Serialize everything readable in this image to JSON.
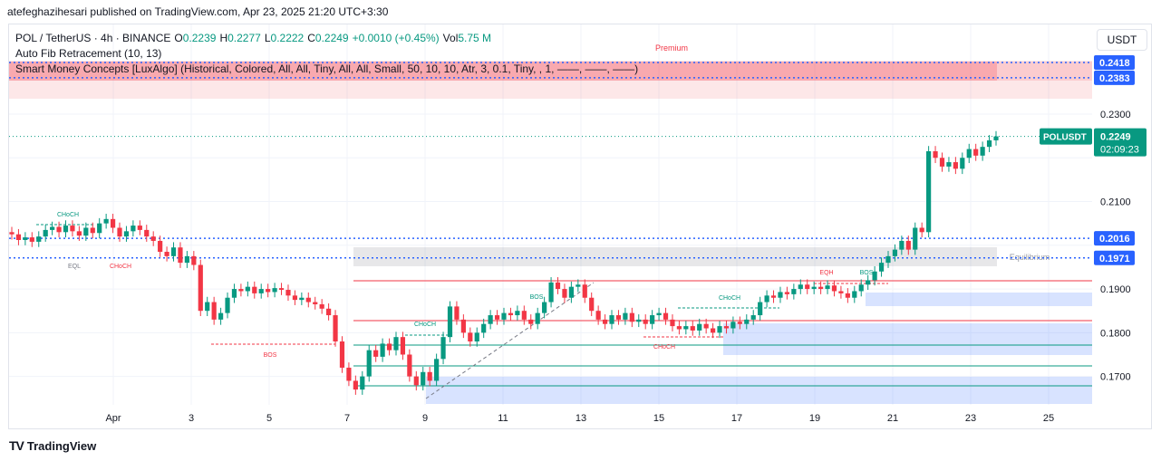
{
  "header": {
    "published_line": "atefeghazihesari published on TradingView.com, Apr 23, 2025 21:20 UTC+3:30"
  },
  "legend": {
    "symbol": "POL / TetherUS · 4h · BINANCE",
    "o_label": "O",
    "o_value": "0.2239",
    "h_label": "H",
    "h_value": "0.2277",
    "l_label": "L",
    "l_value": "0.2222",
    "c_label": "C",
    "c_value": "0.2249",
    "change": "+0.0010 (+0.45%)",
    "vol_label": "Vol",
    "vol_value": "5.75 M",
    "indicator1": "Auto Fib Retracement (10, 13)",
    "indicator2": "Smart Money Concepts [LuxAlgo] (Historical, Colored, All, All, Tiny, All, All, Small, 50, 10, 10, Atr, 3, 0.1, Tiny, , 1, ——, ——, ——)"
  },
  "currency_button": "USDT",
  "brand": {
    "name": "TradingView"
  },
  "colors": {
    "up": "#089981",
    "down": "#f23645",
    "fib_blue": "#2962ff",
    "premium": "#f23645",
    "discount": "#2962ff"
  },
  "chart_data": {
    "type": "candlestick",
    "ylim": [
      0.1635,
      0.2505
    ],
    "x_tick_labels": [
      "Apr",
      "3",
      "5",
      "7",
      "9",
      "11",
      "13",
      "15",
      "17",
      "19",
      "21",
      "23",
      "25"
    ],
    "y_tick_labels": [
      "0.1700",
      "0.1800",
      "0.1900",
      "0.2000",
      "0.2100",
      "0.2200",
      "0.2300"
    ],
    "zone_labels": {
      "premium": "Premium",
      "equilibrium": "Equilibrium"
    },
    "structure_labels": [
      "CHoCH",
      "EQL",
      "CHoCH",
      "BOS",
      "CHoCH",
      "BOS",
      "CHoCH",
      "CHoCH",
      "EQH",
      "BOS"
    ],
    "price_labels": [
      {
        "text": "0.2418",
        "value": 0.2418
      },
      {
        "text": "0.2383",
        "value": 0.2383
      },
      {
        "text": "0.2016",
        "value": 0.2016
      },
      {
        "text": "0.1971",
        "value": 0.1971
      }
    ],
    "current_price": {
      "symbol": "POLUSDT",
      "value": 0.2249,
      "text": "0.2249",
      "countdown": "02:09:23"
    },
    "fib_levels": [
      0.2418,
      0.2383,
      0.2016,
      0.1971
    ],
    "candles": [
      [
        0.203,
        0.2025
      ],
      [
        0.2025,
        0.2012
      ],
      [
        0.2012,
        0.2018
      ],
      [
        0.2018,
        0.2008
      ],
      [
        0.2008,
        0.202
      ],
      [
        0.202,
        0.2035
      ],
      [
        0.2035,
        0.2042
      ],
      [
        0.2042,
        0.203
      ],
      [
        0.203,
        0.2045
      ],
      [
        0.2045,
        0.2032
      ],
      [
        0.2032,
        0.2022
      ],
      [
        0.2022,
        0.204
      ],
      [
        0.204,
        0.2028
      ],
      [
        0.2028,
        0.205
      ],
      [
        0.205,
        0.206
      ],
      [
        0.206,
        0.204
      ],
      [
        0.204,
        0.202
      ],
      [
        0.202,
        0.2032
      ],
      [
        0.2032,
        0.2045
      ],
      [
        0.2045,
        0.2035
      ],
      [
        0.2035,
        0.202
      ],
      [
        0.202,
        0.201
      ],
      [
        0.201,
        0.1985
      ],
      [
        0.1985,
        0.1975
      ],
      [
        0.1975,
        0.1995
      ],
      [
        0.1995,
        0.196
      ],
      [
        0.196,
        0.1975
      ],
      [
        0.1975,
        0.1955
      ],
      [
        0.1955,
        0.185
      ],
      [
        0.185,
        0.187
      ],
      [
        0.187,
        0.183
      ],
      [
        0.183,
        0.1845
      ],
      [
        0.1845,
        0.188
      ],
      [
        0.188,
        0.19
      ],
      [
        0.19,
        0.1895
      ],
      [
        0.1895,
        0.1905
      ],
      [
        0.1905,
        0.189
      ],
      [
        0.189,
        0.19
      ],
      [
        0.19,
        0.1893
      ],
      [
        0.1893,
        0.1902
      ],
      [
        0.1902,
        0.1898
      ],
      [
        0.1898,
        0.1885
      ],
      [
        0.1885,
        0.1875
      ],
      [
        0.1875,
        0.188
      ],
      [
        0.188,
        0.187
      ],
      [
        0.187,
        0.1865
      ],
      [
        0.1865,
        0.1855
      ],
      [
        0.1855,
        0.184
      ],
      [
        0.184,
        0.178
      ],
      [
        0.178,
        0.172
      ],
      [
        0.172,
        0.169
      ],
      [
        0.169,
        0.167
      ],
      [
        0.167,
        0.17
      ],
      [
        0.17,
        0.176
      ],
      [
        0.176,
        0.1745
      ],
      [
        0.1745,
        0.1775
      ],
      [
        0.1775,
        0.176
      ],
      [
        0.176,
        0.179
      ],
      [
        0.179,
        0.175
      ],
      [
        0.175,
        0.17
      ],
      [
        0.17,
        0.168
      ],
      [
        0.168,
        0.171
      ],
      [
        0.171,
        0.169
      ],
      [
        0.169,
        0.174
      ],
      [
        0.174,
        0.179
      ],
      [
        0.179,
        0.186
      ],
      [
        0.186,
        0.183
      ],
      [
        0.183,
        0.18
      ],
      [
        0.18,
        0.178
      ],
      [
        0.178,
        0.18
      ],
      [
        0.18,
        0.182
      ],
      [
        0.182,
        0.184
      ],
      [
        0.184,
        0.183
      ],
      [
        0.183,
        0.1845
      ],
      [
        0.1845,
        0.184
      ],
      [
        0.184,
        0.185
      ],
      [
        0.185,
        0.183
      ],
      [
        0.183,
        0.182
      ],
      [
        0.182,
        0.1845
      ],
      [
        0.1845,
        0.187
      ],
      [
        0.187,
        0.1915
      ],
      [
        0.1915,
        0.19
      ],
      [
        0.19,
        0.188
      ],
      [
        0.188,
        0.1905
      ],
      [
        0.1905,
        0.191
      ],
      [
        0.191,
        0.188
      ],
      [
        0.188,
        0.185
      ],
      [
        0.185,
        0.183
      ],
      [
        0.183,
        0.182
      ],
      [
        0.182,
        0.184
      ],
      [
        0.184,
        0.183
      ],
      [
        0.183,
        0.1845
      ],
      [
        0.1845,
        0.1825
      ],
      [
        0.1825,
        0.183
      ],
      [
        0.183,
        0.182
      ],
      [
        0.182,
        0.184
      ],
      [
        0.184,
        0.1845
      ],
      [
        0.1845,
        0.183
      ],
      [
        0.183,
        0.1815
      ],
      [
        0.1815,
        0.1808
      ],
      [
        0.1808,
        0.1815
      ],
      [
        0.1815,
        0.1805
      ],
      [
        0.1805,
        0.182
      ],
      [
        0.182,
        0.181
      ],
      [
        0.181,
        0.18
      ],
      [
        0.18,
        0.1815
      ],
      [
        0.1815,
        0.181
      ],
      [
        0.181,
        0.1825
      ],
      [
        0.1825,
        0.182
      ],
      [
        0.182,
        0.183
      ],
      [
        0.183,
        0.184
      ],
      [
        0.184,
        0.187
      ],
      [
        0.187,
        0.1885
      ],
      [
        0.1885,
        0.188
      ],
      [
        0.188,
        0.1893
      ],
      [
        0.1893,
        0.1888
      ],
      [
        0.1888,
        0.19
      ],
      [
        0.19,
        0.191
      ],
      [
        0.191,
        0.19
      ],
      [
        0.19,
        0.1905
      ],
      [
        0.1905,
        0.19
      ],
      [
        0.19,
        0.1908
      ],
      [
        0.1908,
        0.1895
      ],
      [
        0.1895,
        0.189
      ],
      [
        0.189,
        0.188
      ],
      [
        0.188,
        0.1895
      ],
      [
        0.1895,
        0.191
      ],
      [
        0.191,
        0.192
      ],
      [
        0.192,
        0.194
      ],
      [
        0.194,
        0.196
      ],
      [
        0.196,
        0.1975
      ],
      [
        0.1975,
        0.199
      ],
      [
        0.199,
        0.201
      ],
      [
        0.201,
        0.199
      ],
      [
        0.199,
        0.204
      ],
      [
        0.204,
        0.203
      ],
      [
        0.203,
        0.2215
      ],
      [
        0.2215,
        0.22
      ],
      [
        0.22,
        0.218
      ],
      [
        0.218,
        0.219
      ],
      [
        0.219,
        0.2175
      ],
      [
        0.2175,
        0.22
      ],
      [
        0.22,
        0.222
      ],
      [
        0.222,
        0.2205
      ],
      [
        0.2205,
        0.2225
      ],
      [
        0.2225,
        0.224
      ],
      [
        0.224,
        0.2249
      ]
    ]
  }
}
